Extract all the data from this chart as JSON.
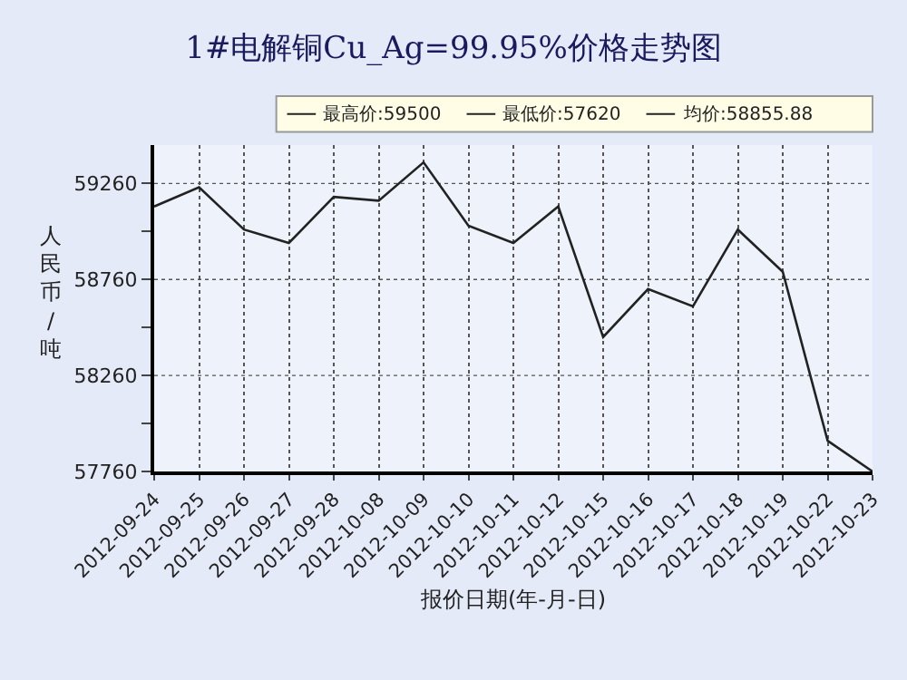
{
  "chart_data": {
    "type": "line",
    "title": "1#电解铜Cu_Ag=99.95%价格走势图",
    "xlabel": "报价日期(年-月-日)",
    "ylabel": "人民币/吨",
    "annotations": [
      "最高价:59500",
      "最低价:57620",
      "均价:58855.88"
    ],
    "categories": [
      "2012-09-24",
      "2012-09-25",
      "2012-09-26",
      "2012-09-27",
      "2012-09-28",
      "2012-10-08",
      "2012-10-09",
      "2012-10-10",
      "2012-10-11",
      "2012-10-12",
      "2012-10-15",
      "2012-10-16",
      "2012-10-17",
      "2012-10-18",
      "2012-10-19",
      "2012-10-22",
      "2012-10-23"
    ],
    "series": [
      {
        "color": "#222222",
        "values": [
          59140,
          59240,
          59020,
          58950,
          59190,
          59170,
          59370,
          59040,
          58950,
          59140,
          58460,
          58710,
          58620,
          59020,
          58800,
          57920,
          57760
        ]
      }
    ],
    "ylim": [
      57760,
      59460
    ],
    "yticks": [
      57760,
      {
        "value": 58010,
        "label": null
      },
      58260,
      {
        "value": 58510,
        "label": null
      },
      58760,
      {
        "value": 59010,
        "label": null
      },
      59260
    ],
    "grid": true,
    "line_style": "solid",
    "marker": "none"
  }
}
